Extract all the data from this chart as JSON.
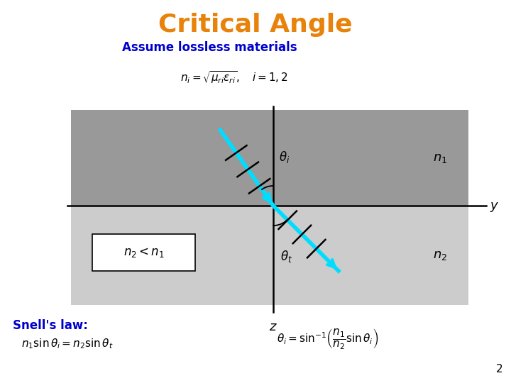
{
  "title": "Critical Angle",
  "title_color": "#E8820A",
  "subtitle": "Assume lossless materials",
  "subtitle_color": "#0000CC",
  "bg_color": "#FFFFFF",
  "upper_rect_color": "#999999",
  "lower_rect_color": "#CCCCCC",
  "n1_label": "$n_1$",
  "n2_label": "$n_2$",
  "y_label": "$y$",
  "z_label": "$z$",
  "theta_i_label": "$\\theta_i$",
  "theta_t_label": "$\\theta_t$",
  "snells_law_label": "Snell's law:",
  "n2_lt_n1_label": "$n_2 < n_1$",
  "beam_color": "#00DDFF",
  "formula_color": "#000000",
  "snells_color": "#0000CC",
  "page_number": "2"
}
